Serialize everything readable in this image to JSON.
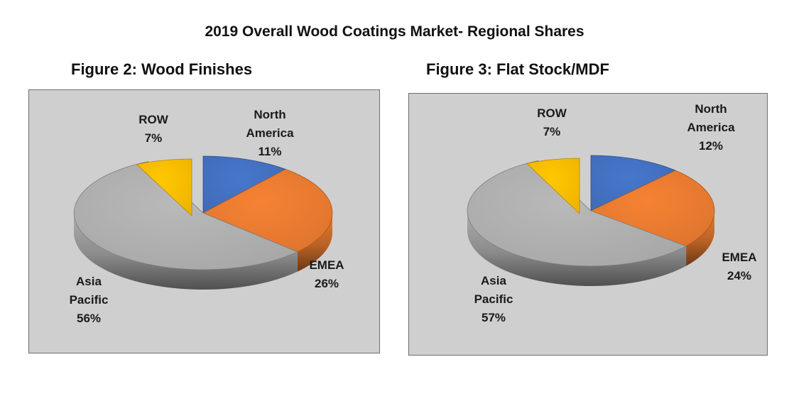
{
  "page": {
    "title": "2019 Overall Wood Coatings Market- Regional Shares"
  },
  "colors": {
    "North America": "#4472c4",
    "EMEA": "#ed7d31",
    "Asia Pacific": "#b2b2b2",
    "ROW": "#ffc000",
    "panel_background": "#d0cfcf"
  },
  "chart_data": [
    {
      "type": "pie",
      "title": "Figure 2: Wood Finishes",
      "categories": [
        "North America",
        "EMEA",
        "Asia Pacific",
        "ROW"
      ],
      "values": [
        11,
        26,
        56,
        7
      ],
      "labels": [
        {
          "lines": [
            "North",
            "America",
            "11%"
          ]
        },
        {
          "lines": [
            "EMEA",
            "26%"
          ]
        },
        {
          "lines": [
            "Asia",
            "Pacific",
            "56%"
          ]
        },
        {
          "lines": [
            "ROW",
            "7%"
          ]
        }
      ],
      "style": "3d-exploded",
      "legend": "none"
    },
    {
      "type": "pie",
      "title": "Figure 3: Flat Stock/MDF",
      "categories": [
        "North America",
        "EMEA",
        "Asia Pacific",
        "ROW"
      ],
      "values": [
        12,
        24,
        57,
        7
      ],
      "labels": [
        {
          "lines": [
            "North",
            "America",
            "12%"
          ]
        },
        {
          "lines": [
            "EMEA",
            "24%"
          ]
        },
        {
          "lines": [
            "Asia",
            "Pacific",
            "57%"
          ]
        },
        {
          "lines": [
            "ROW",
            "7%"
          ]
        }
      ],
      "style": "3d-exploded",
      "legend": "none"
    }
  ]
}
